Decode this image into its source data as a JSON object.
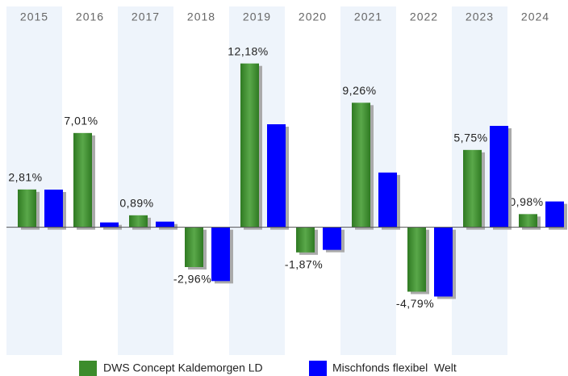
{
  "chart_data": {
    "type": "bar",
    "categories": [
      "2015",
      "2016",
      "2017",
      "2018",
      "2019",
      "2020",
      "2021",
      "2022",
      "2023",
      "2024"
    ],
    "series": [
      {
        "name": "DWS Concept Kaldemorgen LD",
        "color": "#3c8c2c",
        "values": [
          2.81,
          7.01,
          0.89,
          -2.96,
          12.18,
          -1.87,
          9.26,
          -4.79,
          5.75,
          0.98
        ],
        "value_labels": [
          "2,81%",
          "7,01%",
          "0,89%",
          "-2,96%",
          "12,18%",
          "-1,87%",
          "9,26%",
          "-4,79%",
          "5,75%",
          "0,98%"
        ]
      },
      {
        "name": "Mischfonds flexibel  Welt",
        "color": "#0000ff",
        "values": [
          2.8,
          0.36,
          0.42,
          -4.0,
          7.66,
          -1.68,
          4.07,
          -5.15,
          7.54,
          1.92
        ]
      }
    ],
    "ylim": [
      -9.5,
      14.5
    ],
    "legend": "bottom"
  }
}
